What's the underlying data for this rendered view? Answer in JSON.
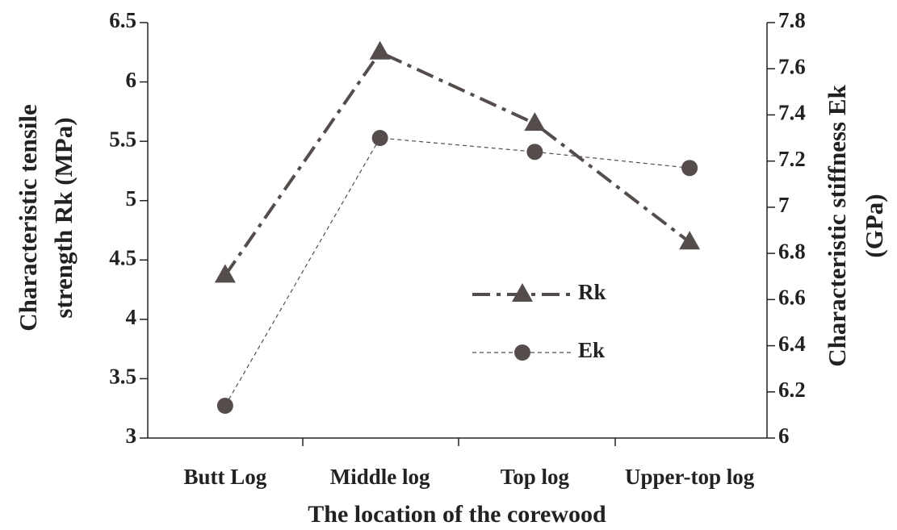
{
  "chart_data": {
    "type": "line",
    "x_label": "The location of the corewood",
    "y_label": [
      "Characteristic tensile",
      "strength Rk (MPa)"
    ],
    "y2_label": [
      "Characteristic stiffness Ek",
      "(GPa)"
    ],
    "categories": [
      "Butt Log",
      "Middle log",
      "Top log",
      "Upper-top log"
    ],
    "series": [
      {
        "name": "Rk",
        "color": "#554d4b",
        "marker": "triangle",
        "values": [
          4.37,
          6.25,
          5.65,
          4.65
        ]
      },
      {
        "name": "Ek",
        "color": "#554d4b",
        "marker": "circle",
        "axis": "y2",
        "values": [
          6.14,
          7.3,
          7.24,
          7.17
        ]
      }
    ],
    "ylim": [
      3,
      6.5
    ],
    "yticks": [
      3,
      3.5,
      4,
      4.5,
      5,
      5.5,
      6,
      6.5
    ],
    "y2lim": [
      6,
      7.8
    ],
    "y2ticks": [
      6,
      6.2,
      6.4,
      6.6,
      6.8,
      7,
      7.2,
      7.4,
      7.6,
      7.8
    ],
    "grid": false
  }
}
